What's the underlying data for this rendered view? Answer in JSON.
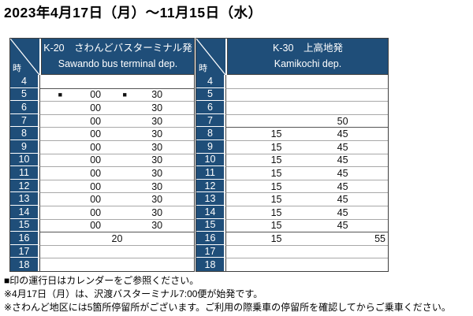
{
  "title": "2023年4月17日（月）～11月15日（水）",
  "colors": {
    "header_navy": "#1F4E79",
    "grid_line": "#A8A8A8",
    "section_line": "#555555",
    "outer_border": "#3F3F3F",
    "text": "#000000"
  },
  "tables": [
    {
      "id": "k20-sawando",
      "hour_header": "時",
      "route_ja": "K-20　さわんどバスターミナル発",
      "route_en": "Sawando bus terminal dep.",
      "rows": [
        {
          "hour": "4",
          "c": [
            "",
            "",
            "",
            ""
          ]
        },
        {
          "hour": "5",
          "c": [
            "■",
            "00",
            "■",
            "30"
          ],
          "sep": true
        },
        {
          "hour": "6",
          "c": [
            "",
            "00",
            "",
            "30"
          ]
        },
        {
          "hour": "7",
          "c": [
            "",
            "00",
            "",
            "30"
          ]
        },
        {
          "hour": "8",
          "c": [
            "",
            "00",
            "",
            "30"
          ]
        },
        {
          "hour": "9",
          "c": [
            "",
            "00",
            "",
            "30"
          ]
        },
        {
          "hour": "10",
          "c": [
            "",
            "00",
            "",
            "30"
          ]
        },
        {
          "hour": "11",
          "c": [
            "",
            "00",
            "",
            "30"
          ]
        },
        {
          "hour": "12",
          "c": [
            "",
            "00",
            "",
            "30"
          ]
        },
        {
          "hour": "13",
          "c": [
            "",
            "00",
            "",
            "30"
          ]
        },
        {
          "hour": "14",
          "c": [
            "",
            "00",
            "",
            "30"
          ]
        },
        {
          "hour": "15",
          "c": [
            "",
            "00",
            "",
            "30"
          ]
        },
        {
          "hour": "16",
          "center": "20",
          "sep": true
        },
        {
          "hour": "17",
          "c": [
            "",
            "",
            "",
            ""
          ]
        },
        {
          "hour": "18",
          "c": [
            "",
            "",
            "",
            ""
          ]
        }
      ]
    },
    {
      "id": "k30-kamikochi",
      "hour_header": "時",
      "route_ja": "K-30　上高地発",
      "route_en": "Kamikochi dep.",
      "rows": [
        {
          "hour": "4",
          "c": [
            "",
            ""
          ]
        },
        {
          "hour": "5",
          "c": [
            "",
            ""
          ]
        },
        {
          "hour": "6",
          "c": [
            "",
            ""
          ]
        },
        {
          "hour": "7",
          "c": [
            "",
            "50"
          ]
        },
        {
          "hour": "8",
          "c": [
            "15",
            "45"
          ],
          "sep": true
        },
        {
          "hour": "9",
          "c": [
            "15",
            "45"
          ]
        },
        {
          "hour": "10",
          "c": [
            "15",
            "45"
          ]
        },
        {
          "hour": "11",
          "c": [
            "15",
            "45"
          ]
        },
        {
          "hour": "12",
          "c": [
            "15",
            "45"
          ]
        },
        {
          "hour": "13",
          "c": [
            "15",
            "45"
          ]
        },
        {
          "hour": "14",
          "c": [
            "15",
            "45"
          ]
        },
        {
          "hour": "15",
          "c": [
            "15",
            "45"
          ]
        },
        {
          "hour": "16",
          "c": [
            "15",
            "55"
          ],
          "align_last": "right",
          "sep": true
        },
        {
          "hour": "17",
          "c": [
            "",
            ""
          ]
        },
        {
          "hour": "18",
          "c": [
            "",
            ""
          ]
        }
      ]
    }
  ],
  "notes": [
    "■印の運行日はカレンダーをご参照ください。",
    "※4月17日（月）は、沢渡バスターミナル7:00便が始発です。",
    "※さわんど地区には5箇所停留所がございます。ご利用の際乗車の停留所を確認してからご乗車ください。"
  ]
}
